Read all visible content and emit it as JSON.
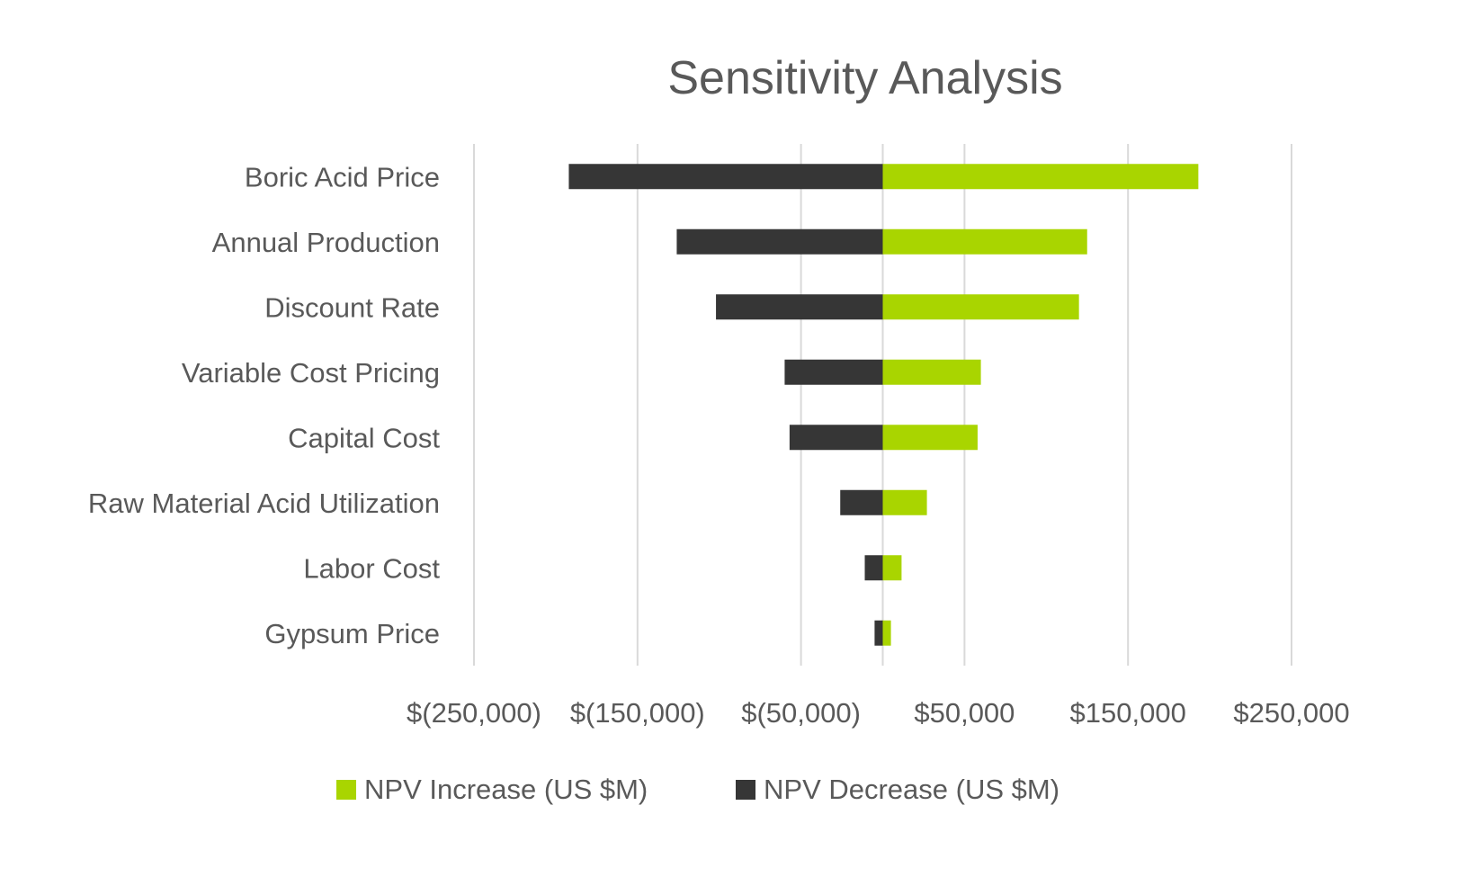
{
  "chart_data": {
    "type": "bar",
    "orientation": "horizontal",
    "stacked": true,
    "title": "Sensitivity Analysis",
    "xlabel": "",
    "ylabel": "",
    "xlim": [
      -250000,
      250000
    ],
    "x_ticks": [
      -250000,
      -150000,
      -50000,
      50000,
      150000,
      250000
    ],
    "x_tick_labels": [
      "$(250,000)",
      "$(150,000)",
      "$(50,000)",
      "$50,000",
      "$150,000",
      "$250,000"
    ],
    "grid": true,
    "legend_position": "bottom",
    "categories": [
      "Boric Acid Price",
      "Annual Production",
      "Discount Rate",
      "Variable Cost Pricing",
      "Capital Cost",
      "Raw Material Acid Utilization",
      "Labor Cost ",
      "Gypsum Price"
    ],
    "series": [
      {
        "name": "NPV Increase (US $M)",
        "color": "#A9D500",
        "values": [
          193000,
          125000,
          120000,
          60000,
          58000,
          27000,
          11500,
          5000
        ]
      },
      {
        "name": "NPV Decrease (US $M)",
        "color": "#363636",
        "values": [
          -192000,
          -126000,
          -102000,
          -60000,
          -57000,
          -26000,
          -11000,
          -5000
        ]
      }
    ]
  }
}
